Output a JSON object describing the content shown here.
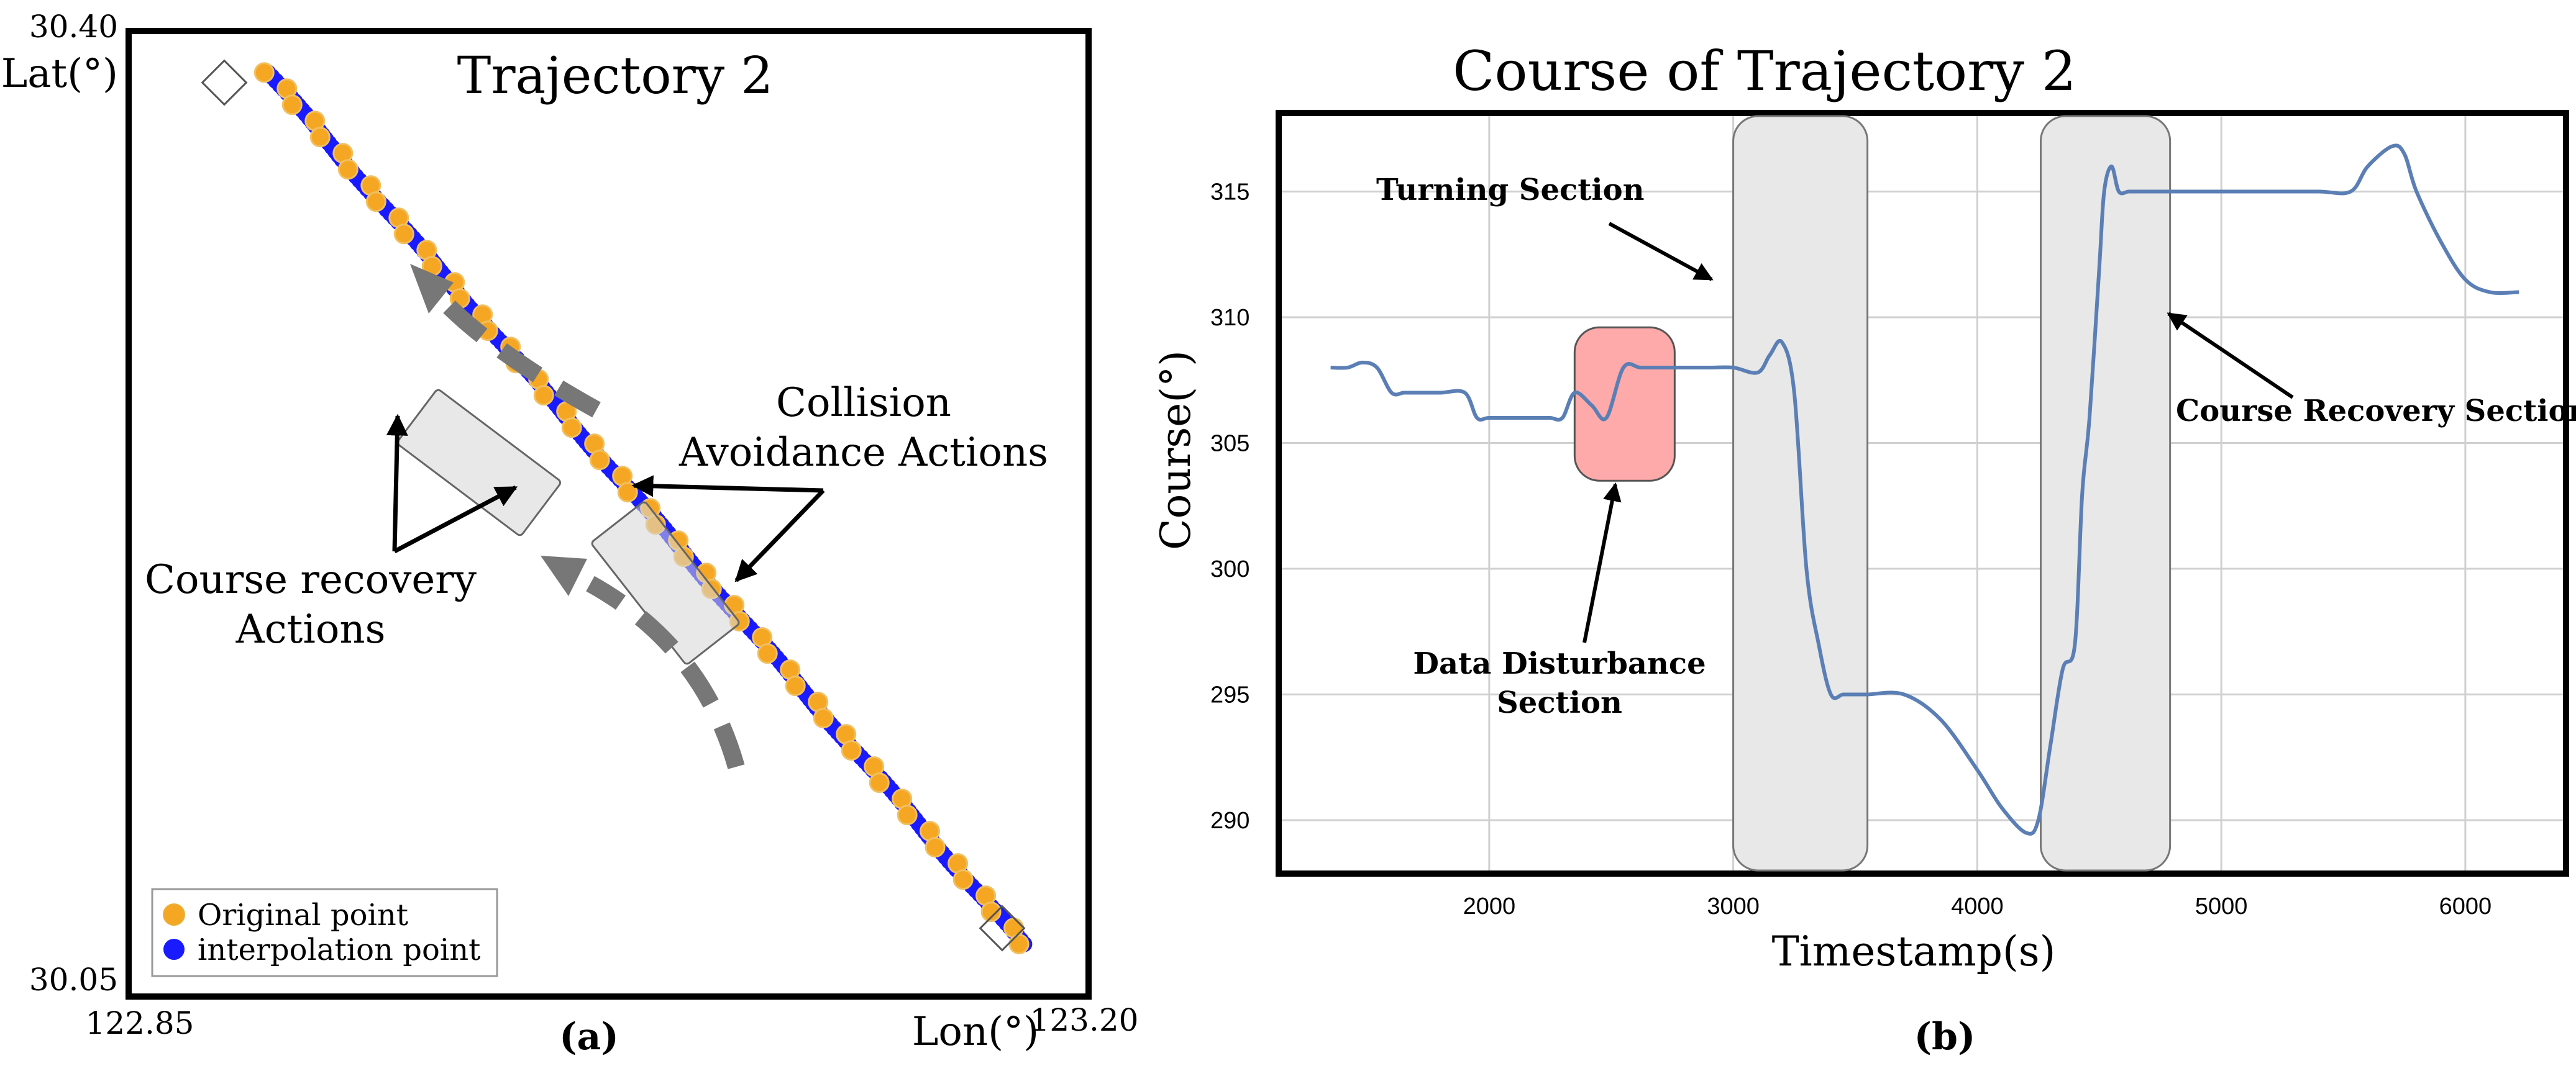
{
  "chart_data": [
    {
      "type": "scatter",
      "panel_label": "(a)",
      "title": "Trajectory 2",
      "xlabel": "Lon(°)",
      "ylabel": "Lat(°)",
      "xlim": [
        122.85,
        123.2
      ],
      "ylim": [
        30.05,
        30.4
      ],
      "x_tick_labels": [
        "122.85",
        "123.20"
      ],
      "y_tick_labels": [
        "30.40",
        "30.05"
      ],
      "track": {
        "start": [
          122.9,
          30.386
        ],
        "end": [
          123.177,
          30.068
        ]
      },
      "series": [
        {
          "name": "Original point",
          "color": "#f5a623"
        },
        {
          "name": "interpolation point",
          "color": "#1a1aff"
        }
      ],
      "annotations": {
        "collision": [
          "Collision",
          "Avoidance Actions"
        ],
        "recovery": [
          "Course recovery",
          "Actions"
        ]
      }
    },
    {
      "type": "line",
      "panel_label": "(b)",
      "title": "Course of Trajectory 2",
      "xlabel": "Timestamp(s)",
      "ylabel": "Course(°)",
      "xlim": [
        1150,
        6400
      ],
      "ylim": [
        288,
        318
      ],
      "x_ticks": [
        2000,
        3000,
        4000,
        5000,
        6000
      ],
      "y_ticks": [
        290,
        295,
        300,
        305,
        310,
        315
      ],
      "line_color": "#5b7fb5",
      "series": [
        {
          "name": "Course",
          "x": [
            1350,
            1420,
            1480,
            1540,
            1600,
            1650,
            1700,
            1800,
            1900,
            1950,
            2000,
            2100,
            2200,
            2250,
            2300,
            2350,
            2420,
            2480,
            2550,
            2620,
            2700,
            2800,
            2900,
            3000,
            3100,
            3150,
            3200,
            3250,
            3300,
            3350,
            3400,
            3450,
            3500,
            3550,
            3700,
            3850,
            4000,
            4100,
            4200,
            4250,
            4300,
            4350,
            4400,
            4430,
            4460,
            4500,
            4520,
            4550,
            4580,
            4620,
            4650,
            4800,
            5000,
            5200,
            5400,
            5530,
            5600,
            5700,
            5750,
            5800,
            5900,
            6000,
            6100,
            6220
          ],
          "y": [
            308,
            308,
            308.2,
            308,
            307,
            307,
            307,
            307,
            307,
            306,
            306,
            306,
            306,
            306,
            306,
            307,
            306.5,
            306,
            308,
            308,
            308,
            308,
            308,
            308,
            307.8,
            308.5,
            309,
            307,
            300,
            297,
            295,
            295,
            295,
            295,
            295,
            294,
            292,
            290.5,
            289.5,
            290,
            293,
            296,
            297,
            303,
            306,
            312,
            315,
            316,
            315,
            315,
            315,
            315,
            315,
            315,
            315,
            315,
            316,
            316.8,
            316.5,
            315,
            313,
            311.5,
            311,
            311
          ]
        }
      ],
      "shaded_sections": [
        {
          "name": "Turning Section",
          "x0": 3000,
          "x1": 3550,
          "color": "#e8e8e8"
        },
        {
          "name": "Course Recovery Section",
          "x0": 4260,
          "x1": 4790,
          "color": "#e8e8e8"
        },
        {
          "name": "Data Disturbance Section",
          "x0": 2350,
          "x1": 2760,
          "y0": 303.5,
          "y1": 309.6,
          "color": "#ffaaaa"
        }
      ],
      "annotations": {
        "turning": "Turning Section",
        "recovery": "Course Recovery Section",
        "disturbance": [
          "Data Disturbance",
          "Section"
        ]
      }
    }
  ]
}
